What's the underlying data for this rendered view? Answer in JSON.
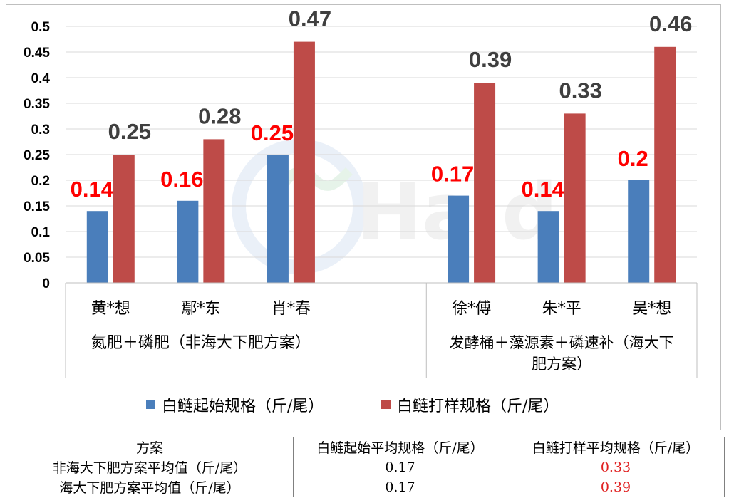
{
  "chart_data": {
    "type": "bar",
    "categories": [
      "黄*想",
      "鄢*东",
      "肖*春",
      "徐*傅",
      "朱*平",
      "吴*想"
    ],
    "groups": [
      {
        "label": "氮肥＋磷肥（非海大下肥方案）",
        "categories": [
          "黄*想",
          "鄢*东",
          "肖*春"
        ]
      },
      {
        "label": "发酵桶＋藻源素＋磷速补（海大下肥方案）",
        "label_lines": [
          "发酵桶＋藻源素＋磷速补（海大下",
          "肥方案）"
        ],
        "categories": [
          "徐*傅",
          "朱*平",
          "吴*想"
        ]
      }
    ],
    "series": [
      {
        "name": "白鲢起始规格（斤/尾）",
        "values": [
          0.14,
          0.16,
          0.25,
          0.17,
          0.14,
          0.2
        ],
        "data_labels": [
          "0.14",
          "0.16",
          "0.25",
          "0.17",
          "0.14",
          "0.2"
        ],
        "color": "#4a7ebb",
        "label_color": "#ff0000"
      },
      {
        "name": "白鲢打样规格（斤/尾）",
        "values": [
          0.25,
          0.28,
          0.47,
          0.39,
          0.33,
          0.46
        ],
        "data_labels": [
          "0.25",
          "0.28",
          "0.47",
          "0.39",
          "0.33",
          "0.46"
        ],
        "color": "#be4b48",
        "label_color": "#3f3f3f"
      }
    ],
    "ylim": [
      0,
      0.5
    ],
    "yticks": [
      "0",
      "0.05",
      "0.1",
      "0.15",
      "0.2",
      "0.25",
      "0.3",
      "0.35",
      "0.4",
      "0.45",
      "0.5"
    ],
    "grid": true,
    "legend": "bottom",
    "xlabel": "",
    "ylabel": "",
    "title": ""
  },
  "watermark": {
    "text": "Haid"
  },
  "table": {
    "headers": [
      "方案",
      "白鲢起始平均规格（斤/尾）",
      "白鲢打样平均规格（斤/尾）"
    ],
    "rows": [
      {
        "label": "非海大下肥方案平均值（斤/尾）",
        "start": "0.17",
        "sample": "0.33"
      },
      {
        "label": "海大下肥方案平均值（斤/尾）",
        "start": "0.17",
        "sample": "0.39"
      }
    ]
  }
}
